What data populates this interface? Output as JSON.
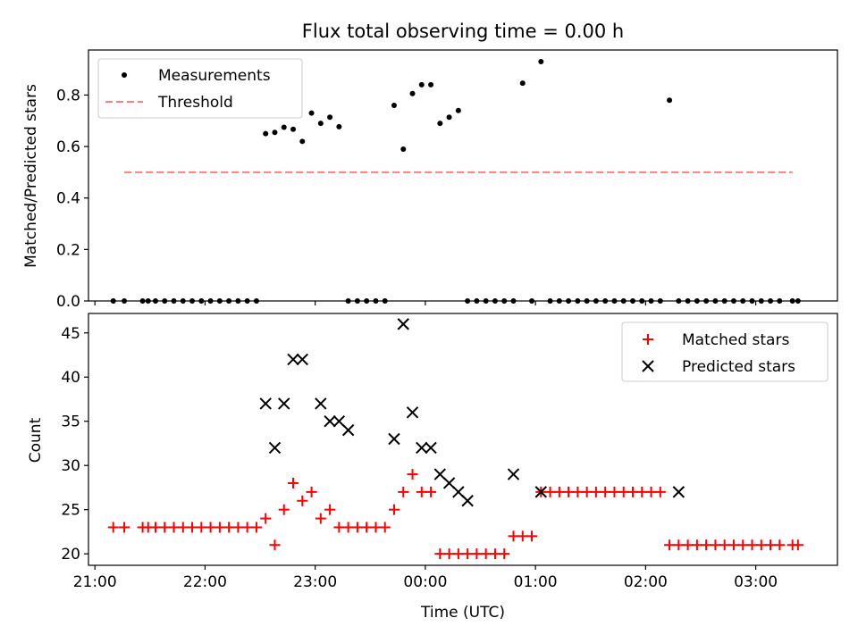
{
  "title": "Flux total observing time = 0.00 h",
  "colors": {
    "threshold": "#ff7f7f",
    "matched": "#ff0000",
    "predicted": "#000000",
    "measurement": "#000000"
  },
  "chart_data": [
    {
      "type": "scatter",
      "ylabel": "Matched/Predicted stars",
      "ylim": [
        0,
        0.975
      ],
      "yticks": [
        0.0,
        0.2,
        0.4,
        0.6,
        0.8
      ],
      "yticklabels": [
        "0.0",
        "0.2",
        "0.4",
        "0.6",
        "0.8"
      ],
      "legend": {
        "placement": "top-left",
        "entries": [
          "Measurements",
          "Threshold"
        ]
      },
      "series": [
        {
          "name": "Measurements",
          "x": [
            "21:10",
            "21:16",
            "21:26",
            "21:29",
            "21:33",
            "21:38",
            "21:43",
            "21:48",
            "21:53",
            "21:58",
            "22:03",
            "22:08",
            "22:13",
            "22:18",
            "22:23",
            "22:28",
            "22:33",
            "22:38",
            "22:43",
            "22:48",
            "22:53",
            "22:58",
            "23:03",
            "23:08",
            "23:13",
            "23:18",
            "23:23",
            "23:28",
            "23:33",
            "23:38",
            "23:43",
            "23:48",
            "23:53",
            "23:58",
            "00:03",
            "00:08",
            "00:13",
            "00:18",
            "00:23",
            "00:28",
            "00:33",
            "00:38",
            "00:43",
            "00:48",
            "00:53",
            "00:58",
            "01:03",
            "01:08",
            "01:13",
            "01:18",
            "01:23",
            "01:28",
            "01:33",
            "01:38",
            "01:43",
            "01:48",
            "01:53",
            "01:58",
            "02:03",
            "02:08",
            "02:13",
            "02:18",
            "02:23",
            "02:28",
            "02:33",
            "02:38",
            "02:43",
            "02:48",
            "02:53",
            "02:58",
            "03:03",
            "03:08",
            "03:13",
            "03:20",
            "03:23"
          ],
          "y": [
            0,
            0,
            0,
            0,
            0,
            0,
            0,
            0,
            0,
            0,
            0,
            0,
            0,
            0,
            0,
            0,
            0.65,
            0.655,
            0.675,
            0.667,
            0.62,
            0.73,
            0.69,
            0.714,
            0.677,
            0,
            0,
            0,
            0,
            0,
            0.76,
            0.59,
            0.806,
            0.84,
            0.84,
            0.69,
            0.714,
            0.74,
            0,
            0,
            0,
            0,
            0,
            0,
            0.846,
            0,
            0.93,
            0,
            0,
            0,
            0,
            0,
            0,
            0,
            0,
            0,
            0,
            0,
            0,
            0,
            0.78,
            0,
            0,
            0,
            0,
            0,
            0,
            0,
            0,
            0,
            0,
            0,
            0,
            0,
            0
          ]
        },
        {
          "name": "Threshold",
          "x": [
            "21:16",
            "03:20"
          ],
          "y": [
            0.5,
            0.5
          ]
        }
      ]
    },
    {
      "type": "scatter",
      "xlabel": "Time (UTC)",
      "ylabel": "Count",
      "ylim": [
        18.7,
        47.2
      ],
      "yticks": [
        20,
        25,
        30,
        35,
        40,
        45
      ],
      "yticklabels": [
        "20",
        "25",
        "30",
        "35",
        "40",
        "45"
      ],
      "xticks": [
        "21:00",
        "22:00",
        "23:00",
        "00:00",
        "01:00",
        "02:00",
        "03:00"
      ],
      "xticklabels": [
        "21:00",
        "22:00",
        "23:00",
        "00:00",
        "01:00",
        "02:00",
        "03:00"
      ],
      "legend": {
        "placement": "top-right",
        "entries": [
          "Matched stars",
          "Predicted stars"
        ]
      },
      "series": [
        {
          "name": "Matched stars",
          "x": [
            "21:10",
            "21:16",
            "21:26",
            "21:29",
            "21:33",
            "21:38",
            "21:43",
            "21:48",
            "21:53",
            "21:58",
            "22:03",
            "22:08",
            "22:13",
            "22:18",
            "22:23",
            "22:28",
            "22:33",
            "22:38",
            "22:43",
            "22:48",
            "22:53",
            "22:58",
            "23:03",
            "23:08",
            "23:13",
            "23:18",
            "23:23",
            "23:28",
            "23:33",
            "23:38",
            "23:43",
            "23:48",
            "23:53",
            "23:58",
            "00:03",
            "00:08",
            "00:13",
            "00:18",
            "00:23",
            "00:28",
            "00:33",
            "00:38",
            "00:43",
            "00:48",
            "00:53",
            "00:58",
            "01:03",
            "01:08",
            "01:13",
            "01:18",
            "01:23",
            "01:28",
            "01:33",
            "01:38",
            "01:43",
            "01:48",
            "01:53",
            "01:58",
            "02:03",
            "02:08",
            "02:13",
            "02:18",
            "02:23",
            "02:28",
            "02:33",
            "02:38",
            "02:43",
            "02:48",
            "02:53",
            "02:58",
            "03:03",
            "03:08",
            "03:13",
            "03:20",
            "03:23"
          ],
          "y": [
            23,
            23,
            23,
            23,
            23,
            23,
            23,
            23,
            23,
            23,
            23,
            23,
            23,
            23,
            23,
            23,
            24,
            21,
            25,
            28,
            26,
            27,
            24,
            25,
            23,
            23,
            23,
            23,
            23,
            23,
            25,
            27,
            29,
            27,
            27,
            20,
            20,
            20,
            20,
            20,
            20,
            20,
            20,
            22,
            22,
            22,
            27,
            27,
            27,
            27,
            27,
            27,
            27,
            27,
            27,
            27,
            27,
            27,
            27,
            27,
            21,
            21,
            21,
            21,
            21,
            21,
            21,
            21,
            21,
            21,
            21,
            21,
            21,
            21,
            21
          ]
        },
        {
          "name": "Predicted stars",
          "x": [
            "22:33",
            "22:38",
            "22:43",
            "22:48",
            "22:53",
            "23:03",
            "23:08",
            "23:13",
            "23:18",
            "23:43",
            "23:48",
            "23:53",
            "23:58",
            "00:03",
            "00:08",
            "00:13",
            "00:18",
            "00:23",
            "00:48",
            "01:03",
            "02:18"
          ],
          "y": [
            37,
            32,
            37,
            42,
            42,
            37,
            35,
            35,
            34,
            33,
            46,
            36,
            32,
            32,
            29,
            28,
            27,
            26,
            29,
            27,
            27
          ]
        }
      ]
    }
  ]
}
